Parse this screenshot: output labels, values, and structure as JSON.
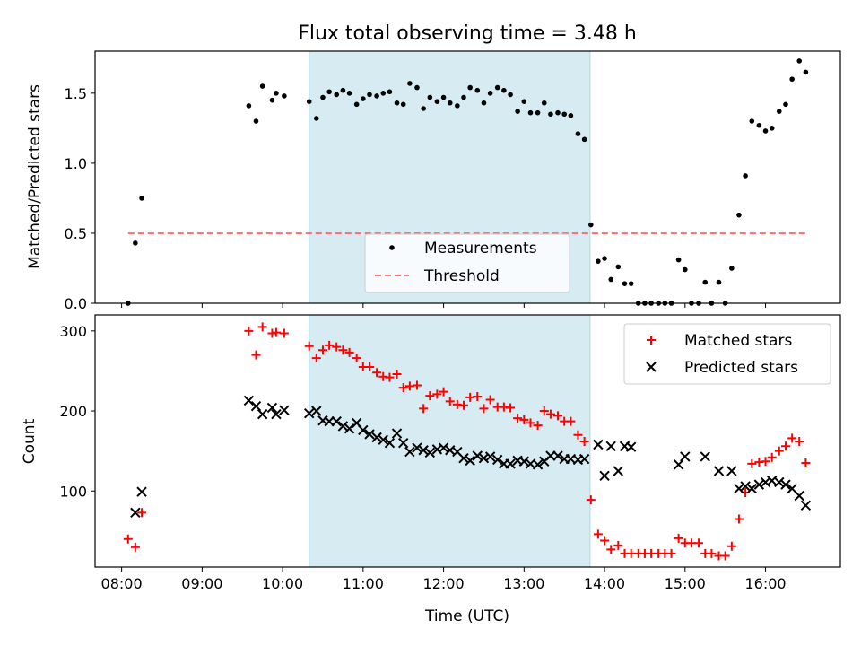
{
  "chart_data": [
    {
      "type": "scatter",
      "title": "Flux total observing time = 3.48 h",
      "xlabel": "",
      "ylabel": "Matched/Predicted stars",
      "x_unit": "hours UTC",
      "xlim": [
        7.67,
        16.93
      ],
      "ylim": [
        0,
        1.8
      ],
      "yticks": [
        0.0,
        0.5,
        1.0,
        1.5
      ],
      "yticklabels": [
        "0.0",
        "0.5",
        "1.0",
        "1.5"
      ],
      "shaded_interval": [
        10.33,
        13.82
      ],
      "shade_color": "#add8e6",
      "legend": {
        "position": "lower-center",
        "entries": [
          "Measurements",
          "Threshold"
        ]
      },
      "threshold": {
        "name": "Threshold",
        "value": 0.5,
        "x_range": [
          8.08,
          16.53
        ],
        "color": "#ff6666"
      },
      "series": [
        {
          "name": "Measurements",
          "marker": "dot",
          "color": "#000000",
          "points": [
            [
              8.08,
              0.0
            ],
            [
              8.17,
              0.43
            ],
            [
              8.25,
              0.75
            ],
            [
              9.58,
              1.41
            ],
            [
              9.67,
              1.3
            ],
            [
              9.75,
              1.55
            ],
            [
              9.87,
              1.45
            ],
            [
              9.92,
              1.5
            ],
            [
              10.02,
              1.48
            ],
            [
              10.33,
              1.44
            ],
            [
              10.42,
              1.32
            ],
            [
              10.5,
              1.47
            ],
            [
              10.58,
              1.51
            ],
            [
              10.67,
              1.49
            ],
            [
              10.75,
              1.52
            ],
            [
              10.83,
              1.5
            ],
            [
              10.92,
              1.42
            ],
            [
              11.0,
              1.46
            ],
            [
              11.08,
              1.49
            ],
            [
              11.17,
              1.48
            ],
            [
              11.25,
              1.5
            ],
            [
              11.33,
              1.51
            ],
            [
              11.42,
              1.43
            ],
            [
              11.5,
              1.42
            ],
            [
              11.58,
              1.57
            ],
            [
              11.67,
              1.54
            ],
            [
              11.75,
              1.39
            ],
            [
              11.83,
              1.47
            ],
            [
              11.92,
              1.44
            ],
            [
              12.0,
              1.47
            ],
            [
              12.08,
              1.43
            ],
            [
              12.17,
              1.41
            ],
            [
              12.25,
              1.47
            ],
            [
              12.33,
              1.54
            ],
            [
              12.42,
              1.52
            ],
            [
              12.5,
              1.43
            ],
            [
              12.58,
              1.5
            ],
            [
              12.67,
              1.54
            ],
            [
              12.75,
              1.52
            ],
            [
              12.83,
              1.49
            ],
            [
              12.92,
              1.37
            ],
            [
              13.0,
              1.44
            ],
            [
              13.08,
              1.36
            ],
            [
              13.17,
              1.36
            ],
            [
              13.25,
              1.43
            ],
            [
              13.33,
              1.35
            ],
            [
              13.42,
              1.36
            ],
            [
              13.5,
              1.35
            ],
            [
              13.58,
              1.34
            ],
            [
              13.67,
              1.21
            ],
            [
              13.75,
              1.17
            ],
            [
              13.83,
              0.56
            ],
            [
              13.92,
              0.3
            ],
            [
              14.0,
              0.32
            ],
            [
              14.08,
              0.17
            ],
            [
              14.17,
              0.26
            ],
            [
              14.25,
              0.14
            ],
            [
              14.33,
              0.14
            ],
            [
              14.42,
              0.0
            ],
            [
              14.5,
              0.0
            ],
            [
              14.58,
              0.0
            ],
            [
              14.67,
              0.0
            ],
            [
              14.75,
              0.0
            ],
            [
              14.83,
              0.0
            ],
            [
              14.92,
              0.31
            ],
            [
              15.0,
              0.24
            ],
            [
              15.08,
              0.0
            ],
            [
              15.17,
              0.0
            ],
            [
              15.25,
              0.15
            ],
            [
              15.33,
              0.0
            ],
            [
              15.42,
              0.15
            ],
            [
              15.5,
              0.0
            ],
            [
              15.58,
              0.25
            ],
            [
              15.67,
              0.63
            ],
            [
              15.75,
              0.91
            ],
            [
              15.83,
              1.3
            ],
            [
              15.92,
              1.27
            ],
            [
              16.0,
              1.23
            ],
            [
              16.08,
              1.25
            ],
            [
              16.17,
              1.37
            ],
            [
              16.25,
              1.42
            ],
            [
              16.33,
              1.6
            ],
            [
              16.42,
              1.73
            ],
            [
              16.5,
              1.65
            ]
          ]
        }
      ]
    },
    {
      "type": "scatter",
      "title": "",
      "xlabel": "Time (UTC)",
      "ylabel": "Count",
      "x_unit": "hours UTC",
      "xlim": [
        7.67,
        16.93
      ],
      "ylim": [
        5,
        320
      ],
      "xticks": [
        8,
        9,
        10,
        11,
        12,
        13,
        14,
        15,
        16
      ],
      "xticklabels": [
        "08:00",
        "09:00",
        "10:00",
        "11:00",
        "12:00",
        "13:00",
        "14:00",
        "15:00",
        "16:00"
      ],
      "yticks": [
        100,
        200,
        300
      ],
      "yticklabels": [
        "100",
        "200",
        "300"
      ],
      "shaded_interval": [
        10.33,
        13.82
      ],
      "shade_color": "#add8e6",
      "legend": {
        "position": "top-right",
        "entries": [
          "Matched stars",
          "Predicted stars"
        ]
      },
      "series": [
        {
          "name": "Matched stars",
          "marker": "plus",
          "color": "#ff0000",
          "points": [
            [
              8.08,
              40
            ],
            [
              8.17,
              30
            ],
            [
              8.25,
              73
            ],
            [
              9.58,
              300
            ],
            [
              9.67,
              270
            ],
            [
              9.75,
              305
            ],
            [
              9.87,
              297
            ],
            [
              9.92,
              298
            ],
            [
              10.02,
              297
            ],
            [
              10.33,
              281
            ],
            [
              10.42,
              266
            ],
            [
              10.5,
              276
            ],
            [
              10.58,
              282
            ],
            [
              10.67,
              280
            ],
            [
              10.75,
              276
            ],
            [
              10.83,
              273
            ],
            [
              10.92,
              266
            ],
            [
              11.0,
              255
            ],
            [
              11.08,
              255
            ],
            [
              11.17,
              248
            ],
            [
              11.25,
              243
            ],
            [
              11.33,
              242
            ],
            [
              11.42,
              246
            ],
            [
              11.5,
              229
            ],
            [
              11.58,
              231
            ],
            [
              11.67,
              232
            ],
            [
              11.75,
              203
            ],
            [
              11.83,
              219
            ],
            [
              11.92,
              221
            ],
            [
              12.0,
              224
            ],
            [
              12.08,
              212
            ],
            [
              12.17,
              208
            ],
            [
              12.25,
              207
            ],
            [
              12.33,
              217
            ],
            [
              12.42,
              218
            ],
            [
              12.5,
              203
            ],
            [
              12.58,
              214
            ],
            [
              12.67,
              205
            ],
            [
              12.75,
              205
            ],
            [
              12.83,
              204
            ],
            [
              12.92,
              191
            ],
            [
              13.0,
              189
            ],
            [
              13.08,
              185
            ],
            [
              13.17,
              182
            ],
            [
              13.25,
              200
            ],
            [
              13.33,
              196
            ],
            [
              13.42,
              194
            ],
            [
              13.5,
              187
            ],
            [
              13.58,
              187
            ],
            [
              13.67,
              170
            ],
            [
              13.75,
              162
            ],
            [
              13.83,
              89
            ],
            [
              13.92,
              46
            ],
            [
              14.0,
              38
            ],
            [
              14.08,
              27
            ],
            [
              14.17,
              32
            ],
            [
              14.25,
              22
            ],
            [
              14.33,
              22
            ],
            [
              14.42,
              22
            ],
            [
              14.5,
              22
            ],
            [
              14.58,
              22
            ],
            [
              14.67,
              22
            ],
            [
              14.75,
              22
            ],
            [
              14.83,
              22
            ],
            [
              14.92,
              41
            ],
            [
              15.0,
              35
            ],
            [
              15.08,
              35
            ],
            [
              15.17,
              35
            ],
            [
              15.25,
              22
            ],
            [
              15.33,
              22
            ],
            [
              15.42,
              19
            ],
            [
              15.5,
              19
            ],
            [
              15.58,
              31
            ],
            [
              15.67,
              65
            ],
            [
              15.75,
              98
            ],
            [
              15.83,
              134
            ],
            [
              15.92,
              136
            ],
            [
              16.0,
              137
            ],
            [
              16.08,
              142
            ],
            [
              16.17,
              150
            ],
            [
              16.25,
              156
            ],
            [
              16.33,
              166
            ],
            [
              16.42,
              162
            ],
            [
              16.5,
              135
            ]
          ]
        },
        {
          "name": "Predicted stars",
          "marker": "x",
          "color": "#000000",
          "points": [
            [
              8.17,
              73
            ],
            [
              8.25,
              99
            ],
            [
              9.58,
              213
            ],
            [
              9.67,
              206
            ],
            [
              9.75,
              196
            ],
            [
              9.87,
              204
            ],
            [
              9.92,
              196
            ],
            [
              10.02,
              201
            ],
            [
              10.33,
              197
            ],
            [
              10.42,
              200
            ],
            [
              10.5,
              188
            ],
            [
              10.58,
              187
            ],
            [
              10.67,
              187
            ],
            [
              10.75,
              181
            ],
            [
              10.83,
              178
            ],
            [
              10.92,
              185
            ],
            [
              11.0,
              176
            ],
            [
              11.08,
              171
            ],
            [
              11.17,
              167
            ],
            [
              11.25,
              164
            ],
            [
              11.33,
              160
            ],
            [
              11.42,
              172
            ],
            [
              11.5,
              160
            ],
            [
              11.58,
              149
            ],
            [
              11.67,
              154
            ],
            [
              11.75,
              151
            ],
            [
              11.83,
              148
            ],
            [
              11.92,
              152
            ],
            [
              12.0,
              154
            ],
            [
              12.08,
              151
            ],
            [
              12.17,
              149
            ],
            [
              12.25,
              141
            ],
            [
              12.33,
              138
            ],
            [
              12.42,
              144
            ],
            [
              12.5,
              141
            ],
            [
              12.58,
              143
            ],
            [
              12.67,
              139
            ],
            [
              12.75,
              134
            ],
            [
              12.83,
              134
            ],
            [
              12.92,
              138
            ],
            [
              13.0,
              137
            ],
            [
              13.08,
              134
            ],
            [
              13.17,
              133
            ],
            [
              13.25,
              137
            ],
            [
              13.33,
              144
            ],
            [
              13.42,
              144
            ],
            [
              13.5,
              140
            ],
            [
              13.58,
              140
            ],
            [
              13.67,
              139
            ],
            [
              13.75,
              140
            ],
            [
              13.92,
              158
            ],
            [
              14.0,
              119
            ],
            [
              14.08,
              156
            ],
            [
              14.17,
              125
            ],
            [
              14.25,
              156
            ],
            [
              14.33,
              155
            ],
            [
              14.92,
              133
            ],
            [
              15.0,
              143
            ],
            [
              15.25,
              143
            ],
            [
              15.42,
              125
            ],
            [
              15.58,
              125
            ],
            [
              15.67,
              103
            ],
            [
              15.75,
              106
            ],
            [
              15.83,
              103
            ],
            [
              15.92,
              108
            ],
            [
              16.0,
              111
            ],
            [
              16.08,
              113
            ],
            [
              16.17,
              111
            ],
            [
              16.25,
              108
            ],
            [
              16.33,
              103
            ],
            [
              16.42,
              94
            ],
            [
              16.5,
              82
            ]
          ]
        }
      ]
    }
  ]
}
